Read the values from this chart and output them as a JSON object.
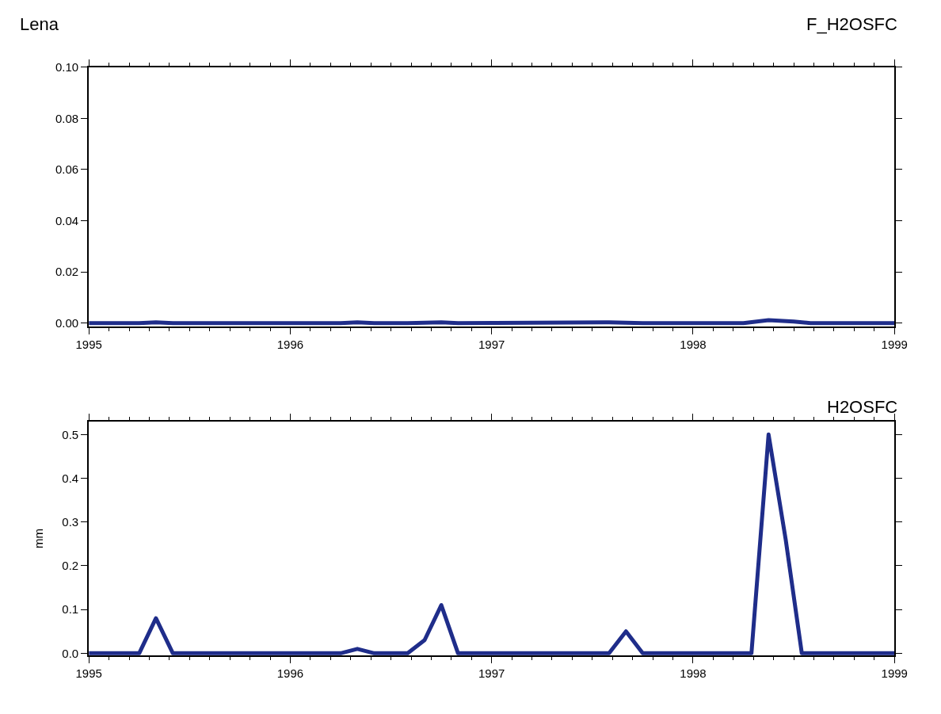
{
  "chart_data": [
    {
      "type": "line",
      "title": "F_H2OSFC",
      "annotations": [
        "Lena"
      ],
      "x": [
        1995.0,
        1995.25,
        1995.333,
        1995.417,
        1996.25,
        1996.333,
        1996.417,
        1996.583,
        1996.75,
        1996.833,
        1997.583,
        1997.75,
        1998.25,
        1998.375,
        1998.5,
        1998.583,
        1999.0
      ],
      "series": [
        {
          "color": "#1f2d8a",
          "values": [
            0,
            0,
            0.0003,
            0,
            0,
            0.0003,
            0,
            0,
            0.0003,
            0,
            0.0003,
            0,
            0,
            0.0012,
            0.0006,
            0,
            0
          ]
        }
      ],
      "xlim": [
        1995,
        1999
      ],
      "xticks": [
        1995,
        1996,
        1997,
        1998,
        1999
      ],
      "ylim": [
        -0.0012,
        0.1
      ],
      "yticks": [
        {
          "value": 0,
          "label": "0.00"
        },
        {
          "value": 0.02,
          "label": "0.02"
        },
        {
          "value": 0.04,
          "label": "0.04"
        },
        {
          "value": 0.06,
          "label": "0.06"
        },
        {
          "value": 0.08,
          "label": "0.08"
        },
        {
          "value": 0.1,
          "label": "0.10"
        }
      ],
      "marker": "none",
      "line_style": "solid"
    },
    {
      "type": "line",
      "title": "H2OSFC",
      "ylabel": "mm",
      "x": [
        1995.0,
        1995.25,
        1995.333,
        1995.417,
        1996.25,
        1996.333,
        1996.417,
        1996.583,
        1996.667,
        1996.75,
        1996.833,
        1997.583,
        1997.667,
        1997.75,
        1998.29,
        1998.375,
        1998.46,
        1998.54,
        1999.0
      ],
      "series": [
        {
          "color": "#1f2d8a",
          "values": [
            0,
            0,
            0.08,
            0,
            0,
            0.01,
            0,
            0,
            0.03,
            0.11,
            0,
            0,
            0.05,
            0,
            0,
            0.5,
            0.26,
            0,
            0
          ]
        }
      ],
      "xlim": [
        1995,
        1999
      ],
      "xticks": [
        1995,
        1996,
        1997,
        1998,
        1999
      ],
      "ylim": [
        -0.005,
        0.53
      ],
      "yticks": [
        {
          "value": 0,
          "label": "0.0"
        },
        0.1,
        0.2,
        0.3,
        0.4,
        0.5
      ],
      "marker": "none",
      "line_style": "solid"
    }
  ]
}
